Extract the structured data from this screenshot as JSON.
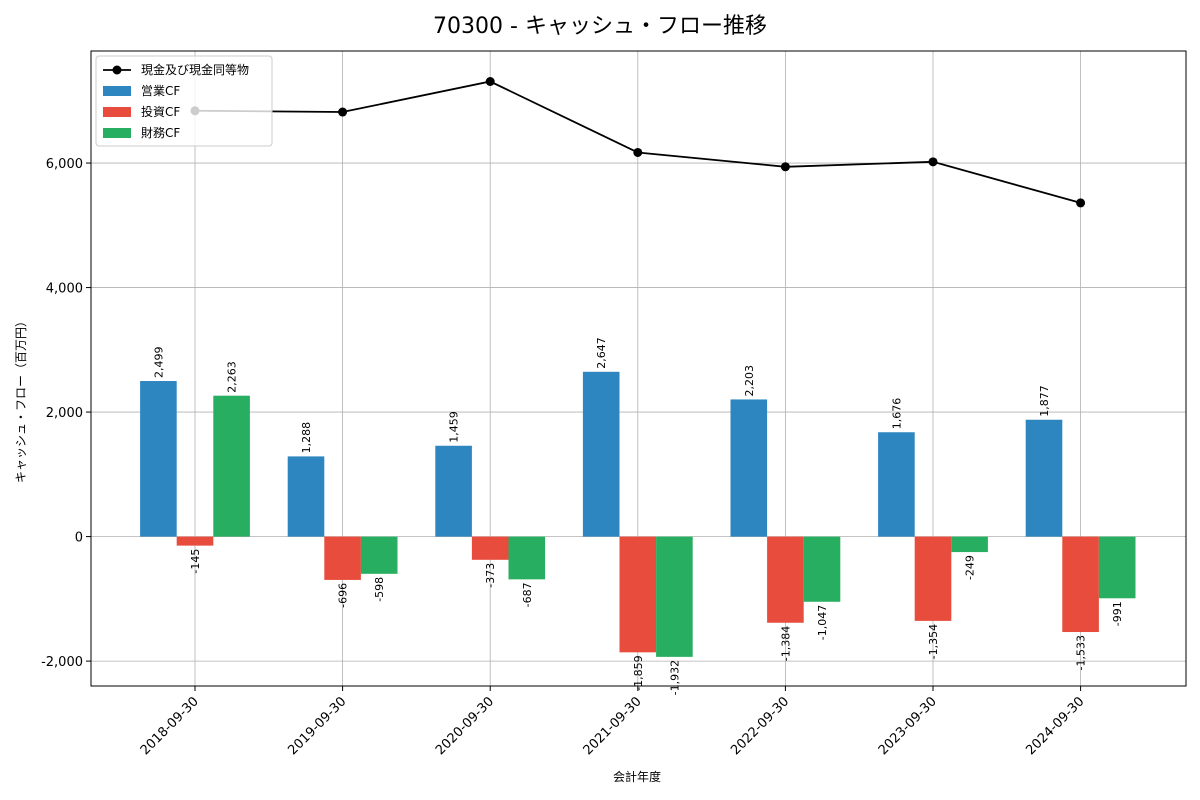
{
  "chart_data": {
    "type": "bar",
    "title": "70300 - キャッシュ・フロー推移",
    "xlabel": "会計年度",
    "ylabel": "キャッシュ・フロー（百万円）",
    "categories": [
      "2018-09-30",
      "2019-09-30",
      "2020-09-30",
      "2021-09-30",
      "2022-09-30",
      "2023-09-30",
      "2024-09-30"
    ],
    "ylim": [
      -2400,
      7800
    ],
    "yticks": [
      -2000,
      0,
      2000,
      4000,
      6000
    ],
    "ytick_labels": [
      "-2,000",
      "0",
      "2,000",
      "4,000",
      "6,000"
    ],
    "grid": true,
    "legend_position": "top-left",
    "series": [
      {
        "name": "営業CF",
        "kind": "bar",
        "color": "#2e86c1",
        "values": [
          2499,
          1288,
          1459,
          2647,
          2203,
          1676,
          1877
        ],
        "labels": [
          "2,499",
          "1,288",
          "1,459",
          "2,647",
          "2,203",
          "1,676",
          "1,877"
        ]
      },
      {
        "name": "投資CF",
        "kind": "bar",
        "color": "#e74c3c",
        "values": [
          -145,
          -696,
          -373,
          -1859,
          -1384,
          -1354,
          -1533
        ],
        "labels": [
          "-145",
          "-696",
          "-373",
          "-1,859",
          "-1,384",
          "-1,354",
          "-1,533"
        ]
      },
      {
        "name": "財務CF",
        "kind": "bar",
        "color": "#27ae60",
        "values": [
          2263,
          -598,
          -687,
          -1932,
          -1047,
          -249,
          -991
        ],
        "labels": [
          "2,263",
          "-598",
          "-687",
          "-1,932",
          "-1,047",
          "-249",
          "-991"
        ]
      },
      {
        "name": "現金及び現金同等物",
        "kind": "line",
        "color": "#000000",
        "values": [
          6840,
          6820,
          7310,
          6170,
          5940,
          6020,
          5360
        ]
      }
    ]
  }
}
